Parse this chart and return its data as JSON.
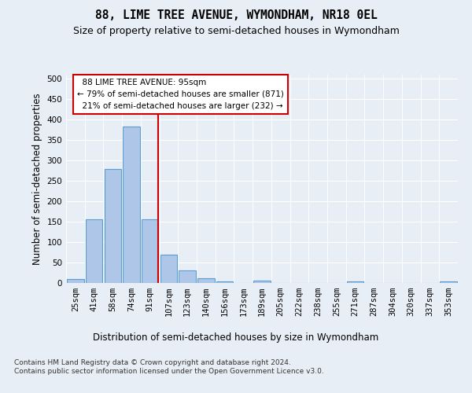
{
  "title": "88, LIME TREE AVENUE, WYMONDHAM, NR18 0EL",
  "subtitle": "Size of property relative to semi-detached houses in Wymondham",
  "xlabel": "Distribution of semi-detached houses by size in Wymondham",
  "ylabel": "Number of semi-detached properties",
  "footnote": "Contains HM Land Registry data © Crown copyright and database right 2024.\nContains public sector information licensed under the Open Government Licence v3.0.",
  "categories": [
    "25sqm",
    "41sqm",
    "58sqm",
    "74sqm",
    "91sqm",
    "107sqm",
    "123sqm",
    "140sqm",
    "156sqm",
    "173sqm",
    "189sqm",
    "205sqm",
    "222sqm",
    "238sqm",
    "255sqm",
    "271sqm",
    "287sqm",
    "304sqm",
    "320sqm",
    "337sqm",
    "353sqm"
  ],
  "values": [
    10,
    155,
    280,
    383,
    155,
    70,
    30,
    11,
    4,
    0,
    6,
    0,
    0,
    0,
    0,
    3,
    0,
    0,
    0,
    0,
    4
  ],
  "bar_color": "#aec6e8",
  "bar_edge_color": "#5a9fd4",
  "subject_line_color": "#cc0000",
  "subject_label": "88 LIME TREE AVENUE: 95sqm",
  "subject_pct_smaller": "79% of semi-detached houses are smaller (871)",
  "subject_pct_larger": "21% of semi-detached houses are larger (232)",
  "annotation_box_edge_color": "#cc0000",
  "ylim": [
    0,
    510
  ],
  "yticks": [
    0,
    50,
    100,
    150,
    200,
    250,
    300,
    350,
    400,
    450,
    500
  ],
  "bg_color": "#e8eef5",
  "plot_bg_color": "#e8eef5",
  "grid_color": "#ffffff",
  "title_fontsize": 10.5,
  "subtitle_fontsize": 9,
  "axis_label_fontsize": 8.5,
  "tick_fontsize": 7.5,
  "footnote_fontsize": 6.5
}
